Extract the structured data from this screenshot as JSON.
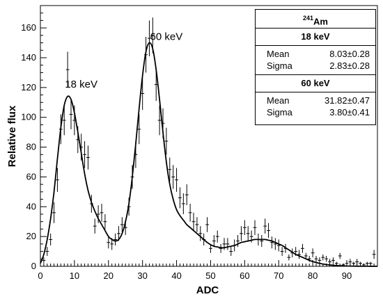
{
  "chart_data": {
    "type": "scatter",
    "title": "",
    "xlabel": "ADC",
    "ylabel": "Relative flux",
    "xlim": [
      0,
      99
    ],
    "ylim": [
      0,
      175
    ],
    "xticks": [
      0,
      10,
      20,
      30,
      40,
      50,
      60,
      70,
      80,
      90
    ],
    "yticks": [
      0,
      20,
      40,
      60,
      80,
      100,
      120,
      140,
      160
    ],
    "annotations": [
      {
        "text": "18 keV",
        "x": 12,
        "y": 120
      },
      {
        "text": "60 keV",
        "x": 37,
        "y": 152
      }
    ],
    "stats": {
      "title_sup": "241",
      "title": "Am",
      "peaks": [
        {
          "name": "18 keV",
          "mean_label": "Mean",
          "mean": "8.03±0.28",
          "sigma_label": "Sigma",
          "sigma": "2.83±0.28"
        },
        {
          "name": "60 keV",
          "mean_label": "Mean",
          "mean": "31.82±0.47",
          "sigma_label": "Sigma",
          "sigma": "3.80±0.41"
        }
      ]
    },
    "series": [
      {
        "kind": "data",
        "points": [
          [
            1,
            4,
            2
          ],
          [
            2,
            10,
            3
          ],
          [
            3,
            18,
            4
          ],
          [
            4,
            36,
            7
          ],
          [
            5,
            58,
            8
          ],
          [
            6,
            92,
            10
          ],
          [
            7,
            98,
            10
          ],
          [
            8,
            132,
            12
          ],
          [
            9,
            102,
            10
          ],
          [
            10,
            98,
            10
          ],
          [
            11,
            85,
            9
          ],
          [
            12,
            80,
            9
          ],
          [
            13,
            75,
            9
          ],
          [
            14,
            73,
            8
          ],
          [
            15,
            42,
            6
          ],
          [
            16,
            27,
            5
          ],
          [
            17,
            35,
            6
          ],
          [
            18,
            36,
            6
          ],
          [
            19,
            30,
            5
          ],
          [
            20,
            16,
            4
          ],
          [
            21,
            15,
            4
          ],
          [
            22,
            18,
            4
          ],
          [
            23,
            22,
            5
          ],
          [
            24,
            28,
            5
          ],
          [
            25,
            26,
            5
          ],
          [
            26,
            40,
            6
          ],
          [
            27,
            60,
            8
          ],
          [
            28,
            75,
            9
          ],
          [
            29,
            92,
            10
          ],
          [
            30,
            116,
            11
          ],
          [
            31,
            142,
            12
          ],
          [
            32,
            153,
            12
          ],
          [
            33,
            155,
            12
          ],
          [
            34,
            122,
            11
          ],
          [
            35,
            98,
            10
          ],
          [
            36,
            96,
            10
          ],
          [
            37,
            84,
            9
          ],
          [
            38,
            65,
            8
          ],
          [
            39,
            60,
            8
          ],
          [
            40,
            58,
            8
          ],
          [
            41,
            46,
            7
          ],
          [
            42,
            42,
            7
          ],
          [
            43,
            48,
            7
          ],
          [
            44,
            36,
            6
          ],
          [
            45,
            30,
            6
          ],
          [
            46,
            28,
            5
          ],
          [
            47,
            22,
            5
          ],
          [
            48,
            18,
            4
          ],
          [
            49,
            28,
            5
          ],
          [
            50,
            12,
            3
          ],
          [
            51,
            17,
            4
          ],
          [
            52,
            20,
            4
          ],
          [
            53,
            12,
            3
          ],
          [
            54,
            15,
            4
          ],
          [
            55,
            15,
            4
          ],
          [
            56,
            10,
            3
          ],
          [
            57,
            14,
            4
          ],
          [
            58,
            17,
            4
          ],
          [
            59,
            22,
            5
          ],
          [
            60,
            26,
            5
          ],
          [
            61,
            22,
            5
          ],
          [
            62,
            20,
            4
          ],
          [
            63,
            26,
            5
          ],
          [
            64,
            18,
            4
          ],
          [
            65,
            17,
            4
          ],
          [
            66,
            27,
            5
          ],
          [
            67,
            24,
            5
          ],
          [
            68,
            16,
            4
          ],
          [
            69,
            15,
            4
          ],
          [
            70,
            14,
            4
          ],
          [
            71,
            10,
            3
          ],
          [
            72,
            12,
            3
          ],
          [
            73,
            6,
            2
          ],
          [
            74,
            9,
            3
          ],
          [
            75,
            10,
            3
          ],
          [
            76,
            8,
            3
          ],
          [
            77,
            12,
            3
          ],
          [
            78,
            7,
            2
          ],
          [
            79,
            5,
            2
          ],
          [
            80,
            9,
            3
          ],
          [
            81,
            5,
            2
          ],
          [
            82,
            4,
            2
          ],
          [
            83,
            6,
            2
          ],
          [
            84,
            5,
            2
          ],
          [
            85,
            3,
            2
          ],
          [
            86,
            4,
            2
          ],
          [
            87,
            2,
            1
          ],
          [
            88,
            7,
            2
          ],
          [
            89,
            1,
            1
          ],
          [
            90,
            2,
            1
          ],
          [
            91,
            3,
            2
          ],
          [
            92,
            2,
            1
          ],
          [
            93,
            3,
            2
          ],
          [
            94,
            2,
            1
          ],
          [
            95,
            1,
            1
          ],
          [
            96,
            2,
            1
          ],
          [
            97,
            2,
            1
          ],
          [
            98,
            8,
            3
          ]
        ]
      },
      {
        "kind": "fit",
        "points": [
          [
            0,
            2
          ],
          [
            1,
            8
          ],
          [
            2,
            18
          ],
          [
            3,
            32
          ],
          [
            4,
            50
          ],
          [
            5,
            72
          ],
          [
            6,
            93
          ],
          [
            7,
            108
          ],
          [
            8,
            114
          ],
          [
            9,
            112
          ],
          [
            10,
            103
          ],
          [
            11,
            90
          ],
          [
            12,
            76
          ],
          [
            13,
            62
          ],
          [
            14,
            51
          ],
          [
            15,
            43
          ],
          [
            16,
            37
          ],
          [
            17,
            32
          ],
          [
            18,
            28
          ],
          [
            19,
            24
          ],
          [
            20,
            20
          ],
          [
            21,
            18
          ],
          [
            22,
            17
          ],
          [
            23,
            18
          ],
          [
            24,
            22
          ],
          [
            25,
            30
          ],
          [
            26,
            42
          ],
          [
            27,
            60
          ],
          [
            28,
            82
          ],
          [
            29,
            106
          ],
          [
            30,
            128
          ],
          [
            31,
            144
          ],
          [
            32,
            150
          ],
          [
            33,
            146
          ],
          [
            34,
            132
          ],
          [
            35,
            112
          ],
          [
            36,
            90
          ],
          [
            37,
            70
          ],
          [
            38,
            55
          ],
          [
            39,
            45
          ],
          [
            40,
            38
          ],
          [
            41,
            34
          ],
          [
            42,
            31
          ],
          [
            43,
            28
          ],
          [
            44,
            26
          ],
          [
            45,
            24
          ],
          [
            46,
            22
          ],
          [
            47,
            20
          ],
          [
            48,
            18
          ],
          [
            49,
            16
          ],
          [
            50,
            14.5
          ],
          [
            51,
            13.5
          ],
          [
            52,
            13
          ],
          [
            53,
            12.5
          ],
          [
            54,
            12.5
          ],
          [
            55,
            13
          ],
          [
            56,
            13.5
          ],
          [
            57,
            14
          ],
          [
            58,
            15
          ],
          [
            59,
            16
          ],
          [
            60,
            16.5
          ],
          [
            61,
            17
          ],
          [
            62,
            17.5
          ],
          [
            63,
            18
          ],
          [
            64,
            18
          ],
          [
            65,
            18
          ],
          [
            66,
            18
          ],
          [
            67,
            17.5
          ],
          [
            68,
            17
          ],
          [
            69,
            16
          ],
          [
            70,
            15
          ],
          [
            71,
            14
          ],
          [
            72,
            12.5
          ],
          [
            73,
            11
          ],
          [
            74,
            9.5
          ],
          [
            75,
            8
          ],
          [
            76,
            7
          ],
          [
            77,
            6
          ],
          [
            78,
            5
          ],
          [
            79,
            4
          ],
          [
            80,
            3.2
          ],
          [
            82,
            2
          ],
          [
            84,
            1.2
          ],
          [
            86,
            0.7
          ],
          [
            88,
            0.4
          ],
          [
            90,
            0.2
          ],
          [
            93,
            0.1
          ],
          [
            96,
            0.05
          ],
          [
            99,
            0
          ]
        ]
      }
    ]
  }
}
